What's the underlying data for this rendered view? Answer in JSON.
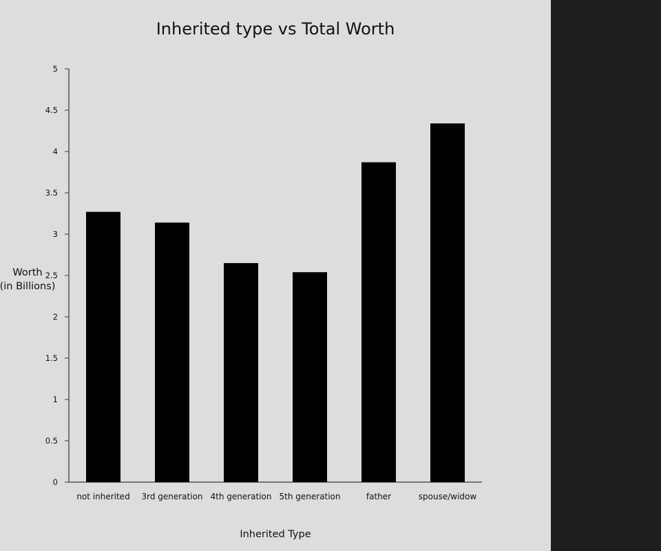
{
  "chart_data": {
    "type": "bar",
    "title": "Inherited type vs Total Worth",
    "xlabel": "Inherited Type",
    "ylabel_line1": "Worth",
    "ylabel_line2": "(in Billions)",
    "categories": [
      "not inherited",
      "3rd generation",
      "4th generation",
      "5th generation",
      "father",
      "spouse/widow"
    ],
    "values": [
      3.27,
      3.14,
      2.65,
      2.54,
      3.87,
      4.34
    ],
    "ylim": [
      0,
      5
    ],
    "yticks": [
      "0",
      "0.5",
      "1",
      "1.5",
      "2",
      "2.5",
      "3",
      "3.5",
      "4",
      "4.5",
      "5"
    ],
    "grid": false,
    "bar_color": "#000000"
  },
  "colors": {
    "chart_background": "#dddddd",
    "side_panel": "#1e1e1e"
  }
}
